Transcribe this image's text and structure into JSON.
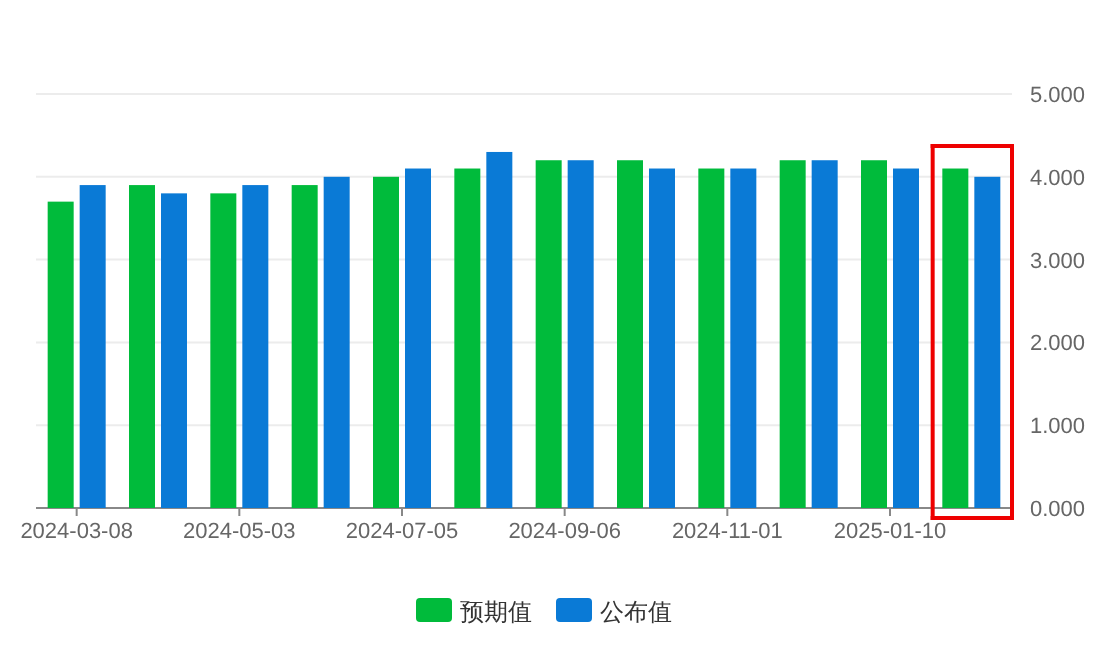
{
  "chart_data": {
    "type": "bar",
    "categories": [
      "2024-03-08",
      null,
      "2024-05-03",
      null,
      "2024-07-05",
      null,
      "2024-09-06",
      null,
      "2024-11-01",
      null,
      "2025-01-10",
      null
    ],
    "series": [
      {
        "name": "预期值",
        "color": "#00bb3b",
        "values": [
          3.7,
          3.9,
          3.8,
          3.9,
          4.0,
          4.1,
          4.2,
          4.2,
          4.1,
          4.2,
          4.2,
          4.1
        ]
      },
      {
        "name": "公布值",
        "color": "#0a7ad6",
        "values": [
          3.9,
          3.8,
          3.9,
          4.0,
          4.1,
          4.3,
          4.2,
          4.1,
          4.1,
          4.2,
          4.1,
          4.0
        ]
      }
    ],
    "ylim": [
      0,
      5
    ],
    "yticks": [
      {
        "value": 0,
        "label": "0.000"
      },
      {
        "value": 1,
        "label": "1.000"
      },
      {
        "value": 2,
        "label": "2.000"
      },
      {
        "value": 3,
        "label": "3.000"
      },
      {
        "value": 4,
        "label": "4.000"
      },
      {
        "value": 5,
        "label": "5.000"
      }
    ],
    "grid": "y",
    "legend": "bottom"
  }
}
